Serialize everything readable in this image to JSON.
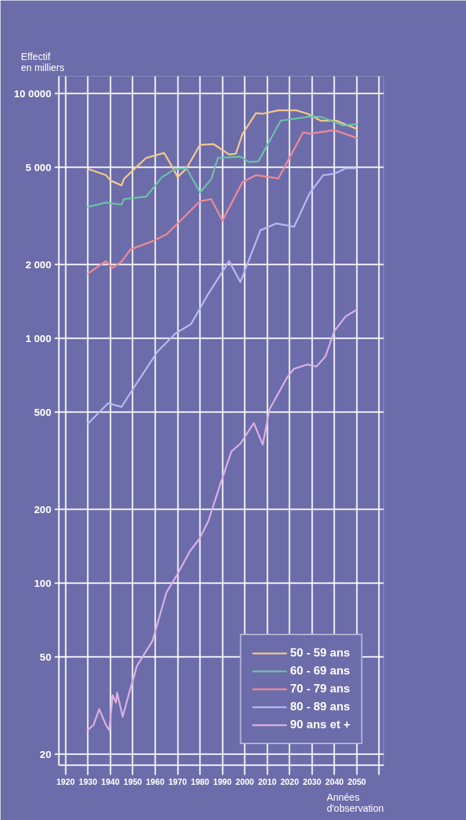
{
  "chart_data": {
    "type": "line",
    "ylabel": "Effectif\nen milliers",
    "xlabel": "Années\nd'observation",
    "log": "y",
    "grid": true,
    "legend": "bottom right",
    "marker": "none",
    "line_style": "solid",
    "xlim": [
      1917,
      2062
    ],
    "ylim": [
      18,
      11800
    ],
    "xticks": [
      1920,
      1930,
      1940,
      1950,
      1960,
      1970,
      1980,
      1990,
      2000,
      2010,
      2020,
      2030,
      2040,
      2050,
      {
        "value": 2060,
        "label": null
      }
    ],
    "yticks": [
      20,
      50,
      100,
      200,
      500,
      {
        "value": 1000,
        "label": "1 000"
      },
      {
        "value": 2000,
        "label": "2 000"
      },
      {
        "value": 5000,
        "label": "5 000"
      },
      {
        "value": 10000,
        "label": "10 0000"
      }
    ],
    "series": [
      {
        "name": "50 - 59 ans",
        "color": "#f5c98a",
        "x": [
          1930,
          1938,
          1940,
          1945,
          1946,
          1951,
          1956,
          1964,
          1968,
          1970,
          1974,
          1980,
          1986,
          1993,
          1996,
          1999,
          2005,
          2008,
          2015,
          2023,
          2028,
          2034,
          2041,
          2050
        ],
        "values": [
          4930,
          4650,
          4420,
          4220,
          4480,
          4960,
          5470,
          5730,
          4960,
          4560,
          4960,
          6190,
          6230,
          5650,
          5690,
          6870,
          8340,
          8290,
          8560,
          8560,
          8290,
          7760,
          7760,
          7180
        ]
      },
      {
        "name": "60 - 69 ans",
        "color": "#6ec0a8",
        "x": [
          1930,
          1938,
          1945,
          1946,
          1956,
          1963,
          1969,
          1974,
          1980,
          1985,
          1988,
          1998,
          2002,
          2006,
          2016,
          2029,
          2034,
          2044,
          2050
        ],
        "values": [
          3450,
          3590,
          3520,
          3710,
          3800,
          4560,
          4930,
          4960,
          3950,
          4480,
          5470,
          5540,
          5260,
          5290,
          7760,
          8070,
          8050,
          7420,
          7520
        ]
      },
      {
        "name": "70 - 79 ans",
        "color": "#f08a94",
        "x": [
          1930,
          1938,
          1941,
          1945,
          1949,
          1959,
          1965,
          1970,
          1980,
          1985,
          1990,
          1999,
          2005,
          2015,
          2026,
          2029,
          2040,
          2050
        ],
        "values": [
          1840,
          2070,
          1940,
          2060,
          2310,
          2500,
          2660,
          2950,
          3640,
          3710,
          3030,
          4360,
          4650,
          4510,
          6950,
          6870,
          7100,
          6600
        ]
      },
      {
        "name": "80 - 89 ans",
        "color": "#b8b8f0",
        "x": [
          1930,
          1939,
          1945,
          1951,
          1957,
          1961,
          1969,
          1976,
          1983,
          1993,
          1998,
          2007,
          2014,
          2022,
          2029,
          2035,
          2040,
          2045,
          2050
        ],
        "values": [
          448,
          543,
          525,
          640,
          776,
          883,
          1047,
          1145,
          1485,
          2070,
          1700,
          2770,
          2950,
          2860,
          3930,
          4650,
          4710,
          4960,
          4960
        ]
      },
      {
        "name": "90 ans et +",
        "color": "#dab0e2",
        "x": [
          1930,
          1932.5,
          1935,
          1938,
          1939.5,
          1941,
          1942.5,
          1943,
          1945.5,
          1948.5,
          1951,
          1951.7,
          1958.8,
          1965,
          1970,
          1975.5,
          1979.6,
          1983.6,
          1988.9,
          1994,
          1998,
          2004,
          2008,
          2011,
          2019,
          2022,
          2028,
          2032,
          2036,
          2040,
          2045,
          2050
        ],
        "values": [
          25.1,
          26.3,
          30.5,
          26.3,
          25.0,
          34.8,
          32.4,
          35.6,
          28.4,
          35.9,
          42.8,
          45.6,
          58.0,
          91.4,
          109,
          135,
          151,
          178,
          251,
          345,
          371,
          451,
          368,
          513,
          695,
          752,
          782,
          767,
          845,
          1074,
          1230,
          1312
        ]
      }
    ]
  }
}
